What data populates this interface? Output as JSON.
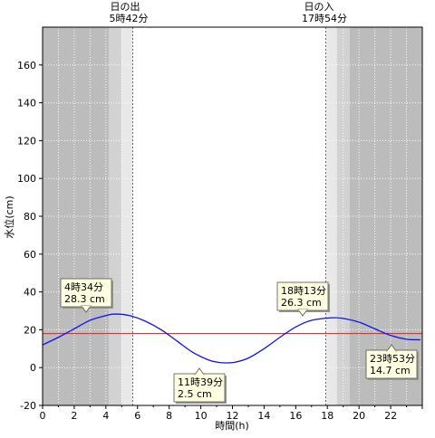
{
  "chart_data": {
    "type": "line",
    "xlabel": "時間(h)",
    "ylabel": "水位(cm)",
    "xlim": [
      0,
      24
    ],
    "ylim": [
      -20,
      180
    ],
    "x_ticks": [
      0,
      2,
      4,
      6,
      8,
      10,
      12,
      14,
      16,
      18,
      20,
      22
    ],
    "y_ticks": [
      -20,
      0,
      20,
      40,
      60,
      80,
      100,
      120,
      140,
      160
    ],
    "grid": true,
    "reference_line": {
      "y": 18,
      "color": "#e53030"
    },
    "sunrise": {
      "label": "日の出",
      "time_label": "5時42分",
      "x": 5.7
    },
    "sunset": {
      "label": "日の入",
      "time_label": "17時54分",
      "x": 17.9
    },
    "night_shading": {
      "morning_dark_end": 4.2,
      "morning_mid_end": 5.0,
      "morning_light_end": 5.7,
      "evening_light_start": 17.9,
      "evening_mid_start": 18.6,
      "evening_dark_start": 19.4
    },
    "series": [
      {
        "color": "#1010ee",
        "x": [
          0,
          1,
          2,
          3,
          4,
          4.57,
          5.5,
          6.5,
          7.5,
          8.5,
          9.5,
          10.5,
          11.1,
          11.65,
          12.2,
          13,
          14,
          15,
          16,
          17,
          18.22,
          19,
          20,
          21,
          22,
          23,
          23.88
        ],
        "y": [
          12,
          16,
          20.5,
          25,
          27.5,
          28.3,
          27.5,
          24.5,
          20,
          14,
          8,
          4,
          2.8,
          2.5,
          2.9,
          5,
          10,
          16,
          21.5,
          25,
          26.3,
          26,
          24,
          20.5,
          17,
          15,
          14.7
        ]
      }
    ],
    "annotations": [
      {
        "time": "4時34分",
        "value": "28.3 cm",
        "x": 4.57,
        "y": 28.3
      },
      {
        "time": "11時39分",
        "value": "2.5 cm",
        "x": 11.65,
        "y": 2.5
      },
      {
        "time": "18時13分",
        "value": "26.3 cm",
        "x": 18.22,
        "y": 26.3
      },
      {
        "time": "23時53分",
        "value": "14.7 cm",
        "x": 23.88,
        "y": 14.7
      }
    ]
  }
}
